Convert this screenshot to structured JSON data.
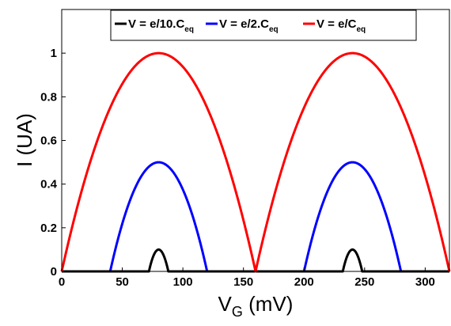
{
  "chart_data": {
    "type": "line",
    "xlabel": "V",
    "xlabel_sub": "G",
    "xlabel_unit": " (mV)",
    "ylabel": "I (UA)",
    "xlim": [
      0,
      320
    ],
    "ylim": [
      0,
      1.2
    ],
    "xticks": [
      0,
      50,
      100,
      150,
      200,
      250,
      300
    ],
    "yticks": [
      0,
      0.2,
      0.4,
      0.6,
      0.8,
      1
    ],
    "grid": false,
    "legend_position": "top",
    "period_mV": 160,
    "series": [
      {
        "name": "V = e/10.C",
        "name_sub": "eq",
        "color": "#000000",
        "peak_values": [
          {
            "x": 80,
            "y": 0.1
          },
          {
            "x": 240,
            "y": 0.1
          }
        ],
        "nonzero_ranges": [
          [
            72,
            88
          ],
          [
            232,
            248
          ]
        ]
      },
      {
        "name": "V = e/2.C",
        "name_sub": "eq",
        "color": "#0000ff",
        "peak_values": [
          {
            "x": 80,
            "y": 0.5
          },
          {
            "x": 240,
            "y": 0.5
          }
        ],
        "nonzero_ranges": [
          [
            40,
            120
          ],
          [
            200,
            280
          ]
        ]
      },
      {
        "name": "V = e/C",
        "name_sub": "eq",
        "color": "#ff0000",
        "peak_values": [
          {
            "x": 80,
            "y": 1.0
          },
          {
            "x": 240,
            "y": 1.0
          }
        ],
        "nonzero_ranges": [
          [
            0,
            160
          ],
          [
            160,
            320
          ]
        ]
      }
    ]
  }
}
